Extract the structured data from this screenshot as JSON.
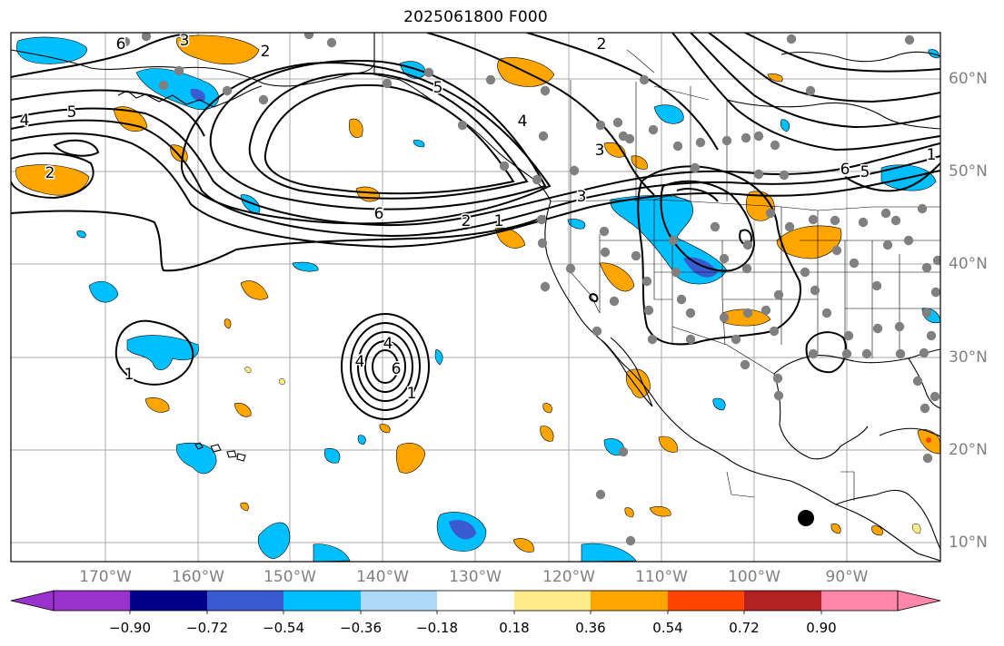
{
  "title": "2025061800 F000",
  "lon_labels": [
    "170°W",
    "160°W",
    "150°W",
    "140°W",
    "130°W",
    "120°W",
    "110°W",
    "100°W",
    "90°W"
  ],
  "lat_labels": [
    "60°N",
    "50°N",
    "40°N",
    "30°N",
    "20°N",
    "10°N"
  ],
  "colorbar": {
    "tick_labels": [
      "−0.90",
      "−0.72",
      "−0.54",
      "−0.36",
      "−0.18",
      "0.18",
      "0.36",
      "0.54",
      "0.72",
      "0.90"
    ],
    "colors": [
      "#9932cc",
      "#00008b",
      "#3a5bd0",
      "#00bfff",
      "#add8f7",
      "#ffffff",
      "#ffeb8a",
      "#ffa500",
      "#ff4500",
      "#b22222",
      "#ff88aa"
    ]
  },
  "contour_labels": [
    "6",
    "2",
    "5",
    "3",
    "4",
    "5",
    "2",
    "4",
    "6",
    "2",
    "1",
    "4",
    "2",
    "1",
    "3",
    "6",
    "5",
    "3",
    "1",
    "1",
    "4",
    "6"
  ],
  "colors": {
    "negative": "#00bfff",
    "positive": "#ffa500",
    "station": "#808080",
    "marker": "#000000"
  }
}
